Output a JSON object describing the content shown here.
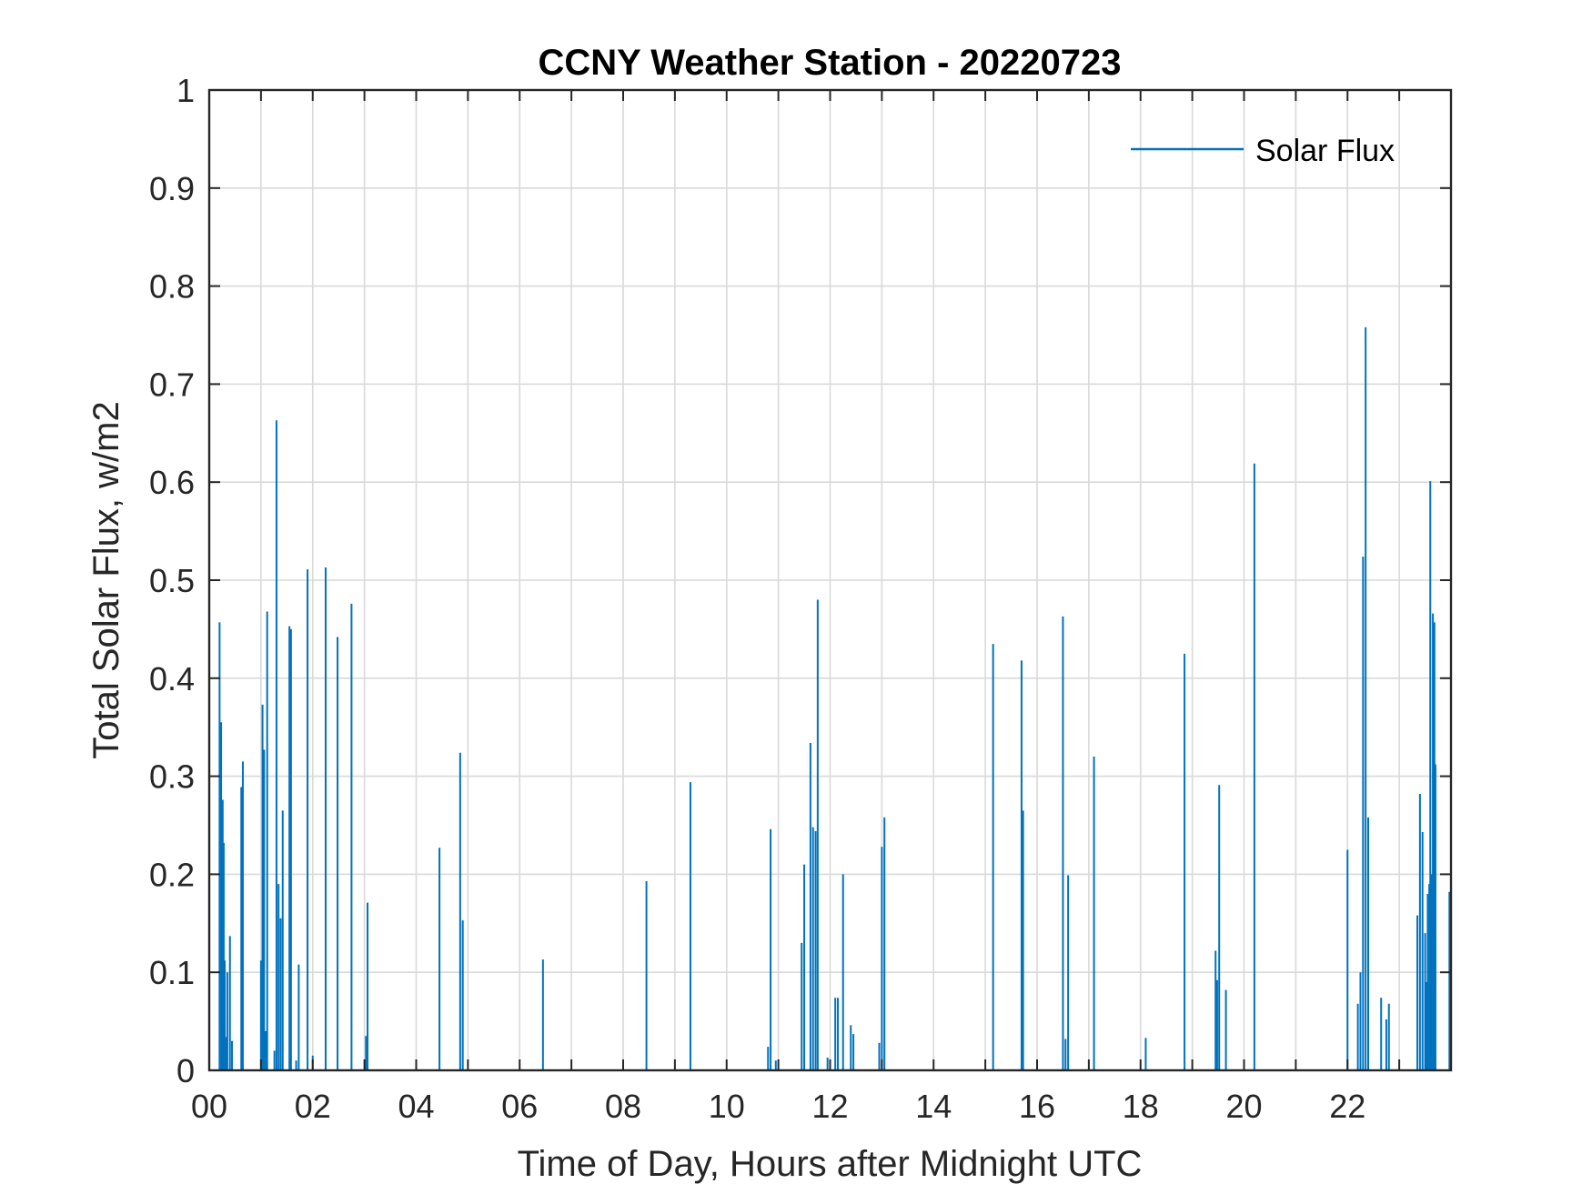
{
  "chart_data": {
    "type": "bar",
    "title": "CCNY Weather Station - 20220723",
    "xlabel": "Time of Day, Hours after Midnight UTC",
    "ylabel": "Total Solar Flux, w/m2",
    "xlim": [
      0,
      24
    ],
    "ylim": [
      0,
      1
    ],
    "x_ticks": [
      0,
      2,
      4,
      6,
      8,
      10,
      12,
      14,
      16,
      18,
      20,
      22
    ],
    "x_tick_labels": [
      "00",
      "02",
      "04",
      "06",
      "08",
      "10",
      "12",
      "14",
      "16",
      "18",
      "20",
      "22"
    ],
    "y_ticks": [
      0,
      0.1,
      0.2,
      0.3,
      0.4,
      0.5,
      0.6,
      0.7,
      0.8,
      0.9,
      1
    ],
    "y_tick_labels": [
      "0",
      "0.1",
      "0.2",
      "0.3",
      "0.4",
      "0.5",
      "0.6",
      "0.7",
      "0.8",
      "0.9",
      "1"
    ],
    "grid": true,
    "legend": {
      "entries": [
        "Solar Flux"
      ],
      "location": "top-right"
    },
    "series": [
      {
        "name": "Solar Flux",
        "color": "#0072bd",
        "x": [
          0.2,
          0.23,
          0.26,
          0.28,
          0.3,
          0.32,
          0.35,
          0.4,
          0.44,
          0.62,
          0.65,
          1.0,
          1.03,
          1.06,
          1.09,
          1.12,
          1.26,
          1.3,
          1.34,
          1.38,
          1.42,
          1.55,
          1.58,
          1.68,
          1.73,
          1.9,
          2.0,
          2.25,
          2.48,
          2.75,
          3.03,
          3.06,
          4.45,
          4.85,
          4.9,
          6.45,
          8.45,
          9.3,
          10.8,
          10.85,
          10.95,
          11.45,
          11.5,
          11.62,
          11.67,
          11.72,
          11.76,
          11.95,
          12.1,
          12.15,
          12.25,
          12.4,
          12.45,
          12.95,
          13.0,
          13.05,
          15.15,
          15.7,
          15.73,
          16.5,
          16.55,
          16.6,
          17.1,
          18.1,
          18.85,
          19.45,
          19.48,
          19.52,
          19.65,
          20.2,
          22.0,
          22.2,
          22.25,
          22.3,
          22.35,
          22.4,
          22.65,
          22.75,
          22.8,
          23.35,
          23.4,
          23.45,
          23.5,
          23.52,
          23.55,
          23.58,
          23.6,
          23.62,
          23.65,
          23.68,
          23.7,
          23.97
        ],
        "values": [
          0.457,
          0.355,
          0.276,
          0.232,
          0.112,
          0.034,
          0.1,
          0.137,
          0.03,
          0.289,
          0.315,
          0.112,
          0.373,
          0.327,
          0.04,
          0.468,
          0.02,
          0.663,
          0.19,
          0.155,
          0.265,
          0.453,
          0.45,
          0.01,
          0.108,
          0.511,
          0.015,
          0.513,
          0.442,
          0.476,
          0.035,
          0.171,
          0.227,
          0.324,
          0.153,
          0.113,
          0.193,
          0.294,
          0.024,
          0.246,
          0.01,
          0.13,
          0.21,
          0.334,
          0.248,
          0.244,
          0.48,
          0.013,
          0.074,
          0.074,
          0.2,
          0.046,
          0.037,
          0.028,
          0.228,
          0.258,
          0.435,
          0.418,
          0.265,
          0.463,
          0.032,
          0.199,
          0.32,
          0.033,
          0.425,
          0.122,
          0.092,
          0.291,
          0.082,
          0.619,
          0.225,
          0.068,
          0.1,
          0.524,
          0.758,
          0.258,
          0.074,
          0.052,
          0.068,
          0.158,
          0.282,
          0.243,
          0.14,
          0.09,
          0.18,
          0.19,
          0.601,
          0.2,
          0.466,
          0.457,
          0.312,
          0.182
        ]
      }
    ]
  }
}
